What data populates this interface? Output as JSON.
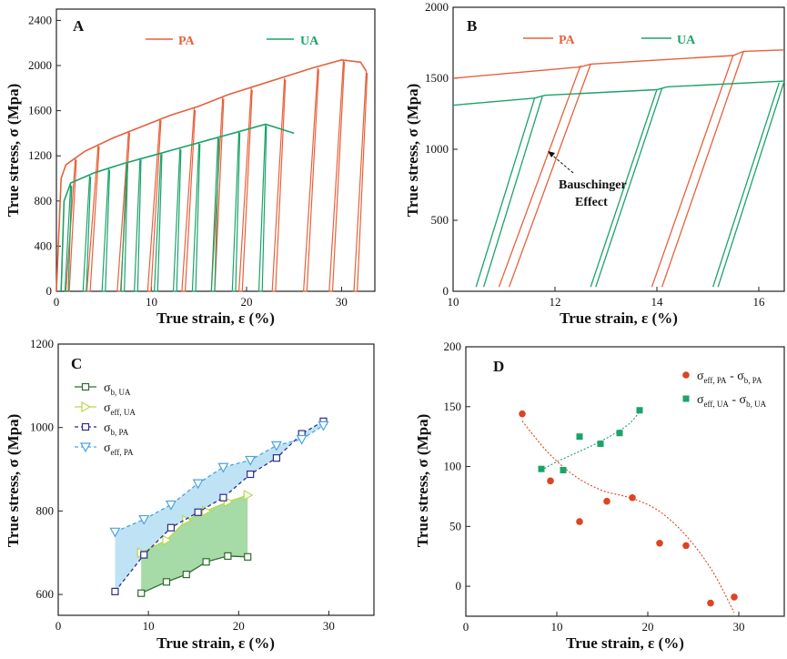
{
  "colors": {
    "pa": "#e8603c",
    "ua": "#1aa36a",
    "blue": "#3b3bb8",
    "yellow": "#b8d84a",
    "fill_blue": "#bfe3f5",
    "fill_green": "#a6dba8",
    "ua_dark": "#2e6b2e",
    "blue_dash": "#2c2c8c",
    "tri_blue": "#4aa3e0",
    "red_dot": "#dd4422",
    "green_sq": "#1aa36a"
  },
  "chart_data": [
    {
      "id": "A",
      "type": "line",
      "panel_label": "A",
      "xlabel": "True strain, ε (%)",
      "ylabel": "True stress, σ (Mpa)",
      "xlim": [
        0,
        33.5
      ],
      "ylim": [
        0,
        2500
      ],
      "xticks": [
        0,
        10,
        20,
        30
      ],
      "yticks": [
        0,
        400,
        800,
        1200,
        1600,
        2000,
        2400
      ],
      "legend": [
        {
          "name": "PA",
          "color_key": "pa"
        },
        {
          "name": "UA",
          "color_key": "ua"
        }
      ],
      "series": [
        {
          "name": "PA",
          "envelope": [
            [
              0,
              0
            ],
            [
              0.5,
              1000
            ],
            [
              1,
              1120
            ],
            [
              3,
              1240
            ],
            [
              6,
              1360
            ],
            [
              9,
              1460
            ],
            [
              12,
              1560
            ],
            [
              15,
              1640
            ],
            [
              18,
              1740
            ],
            [
              21,
              1820
            ],
            [
              24,
              1900
            ],
            [
              27,
              1980
            ],
            [
              30,
              2050
            ],
            [
              32,
              2030
            ],
            [
              32.6,
              1950
            ]
          ],
          "cycles": [
            [
              2.0,
              1180,
              1.0
            ],
            [
              4.4,
              1300,
              3.2
            ],
            [
              7.6,
              1420,
              6.4
            ],
            [
              10.9,
              1530,
              9.6
            ],
            [
              14.5,
              1620,
              13.2
            ],
            [
              17.5,
              1720,
              16.3
            ],
            [
              20.5,
              1800,
              19.2
            ],
            [
              24.0,
              1890,
              22.7
            ],
            [
              27.5,
              1980,
              26.0
            ],
            [
              30.2,
              2050,
              28.7
            ],
            [
              32.6,
              1950,
              31.3
            ]
          ]
        },
        {
          "name": "UA",
          "envelope": [
            [
              0.5,
              0
            ],
            [
              0.8,
              800
            ],
            [
              1.5,
              960
            ],
            [
              4,
              1050
            ],
            [
              7,
              1130
            ],
            [
              10,
              1200
            ],
            [
              13,
              1270
            ],
            [
              16,
              1340
            ],
            [
              19,
              1410
            ],
            [
              22,
              1480
            ],
            [
              25,
              1400
            ]
          ],
          "cycles": [
            [
              1.5,
              950,
              0.9
            ],
            [
              3.5,
              1030,
              2.8
            ],
            [
              5.5,
              1090,
              4.8
            ],
            [
              7.4,
              1140,
              6.8
            ],
            [
              8.8,
              1180,
              8.2
            ],
            [
              11.0,
              1230,
              10.3
            ],
            [
              13.0,
              1270,
              12.3
            ],
            [
              15.0,
              1320,
              14.3
            ],
            [
              17.0,
              1370,
              16.3
            ],
            [
              19.2,
              1420,
              18.5
            ],
            [
              22.0,
              1480,
              21.3
            ]
          ]
        }
      ]
    },
    {
      "id": "B",
      "type": "line",
      "panel_label": "B",
      "xlabel": "True strain, ε (%)",
      "ylabel": "True stress, σ (Mpa)",
      "xlim": [
        10,
        16.5
      ],
      "ylim": [
        0,
        2000
      ],
      "xticks": [
        10,
        12,
        14,
        16
      ],
      "yticks": [
        0,
        500,
        1000,
        1500,
        2000
      ],
      "legend": [
        {
          "name": "PA",
          "color_key": "pa"
        },
        {
          "name": "UA",
          "color_key": "ua"
        }
      ],
      "annotation": {
        "lines": [
          "Bauschinger",
          "Effect"
        ],
        "point": [
          12.05,
          1000
        ],
        "text_pos": [
          12.8,
          730
        ]
      },
      "series": [
        {
          "name": "PA",
          "flow": [
            [
              10,
              1500
            ],
            [
              12.5,
              1580
            ],
            [
              12.7,
              1600
            ],
            [
              15.5,
              1660
            ],
            [
              15.7,
              1690
            ],
            [
              16.5,
              1700
            ]
          ],
          "unload": [
            [
              12.5,
              1590,
              10.9,
              30
            ],
            [
              12.7,
              1600,
              11.1,
              30
            ],
            [
              15.5,
              1665,
              13.9,
              30
            ],
            [
              15.7,
              1690,
              14.1,
              30
            ]
          ]
        },
        {
          "name": "UA",
          "flow": [
            [
              10,
              1310
            ],
            [
              11.6,
              1360
            ],
            [
              11.8,
              1380
            ],
            [
              14.0,
              1420
            ],
            [
              14.2,
              1440
            ],
            [
              16.5,
              1480
            ]
          ],
          "unload": [
            [
              11.6,
              1360,
              10.45,
              30
            ],
            [
              11.75,
              1370,
              10.6,
              30
            ],
            [
              14.0,
              1420,
              12.7,
              30
            ],
            [
              14.1,
              1430,
              12.8,
              30
            ],
            [
              16.4,
              1470,
              15.1,
              30
            ],
            [
              16.5,
              1480,
              15.2,
              30
            ]
          ]
        }
      ]
    },
    {
      "id": "C",
      "type": "line",
      "panel_label": "C",
      "xlabel": "True strain, ε (%)",
      "ylabel": "True stress, σ (Mpa)",
      "xlim": [
        0,
        35
      ],
      "ylim": [
        550,
        1200
      ],
      "xticks": [
        0,
        10,
        20,
        30
      ],
      "yticks": [
        600,
        800,
        1000,
        1200
      ],
      "series": [
        {
          "name": "σb, UA",
          "legend_main": "σ",
          "legend_sub": "b, UA",
          "marker": "square",
          "color_key": "ua_dark",
          "dash": false,
          "x": [
            9.2,
            12.0,
            14.2,
            16.4,
            18.8,
            21.0
          ],
          "y": [
            603,
            630,
            648,
            678,
            692,
            690
          ]
        },
        {
          "name": "σeff, UA",
          "legend_main": "σ",
          "legend_sub": "eff, UA",
          "marker": "triangle-right",
          "color_key": "yellow",
          "dash": false,
          "x": [
            9.2,
            12.0,
            14.2,
            16.4,
            18.8,
            21.0
          ],
          "y": [
            700,
            730,
            778,
            800,
            822,
            838
          ]
        },
        {
          "name": "σb, PA",
          "legend_main": "σ",
          "legend_sub": "b, PA",
          "marker": "square",
          "color_key": "blue_dash",
          "dash": true,
          "x": [
            6.3,
            9.5,
            12.5,
            15.5,
            18.3,
            21.3,
            24.2,
            27.0,
            29.4
          ],
          "y": [
            607,
            695,
            760,
            797,
            832,
            888,
            927,
            985,
            1015
          ]
        },
        {
          "name": "σeff, PA",
          "legend_main": "σ",
          "legend_sub": "eff, PA",
          "marker": "triangle-down",
          "color_key": "tri_blue",
          "dash": true,
          "x": [
            6.3,
            9.5,
            12.5,
            15.5,
            18.3,
            21.3,
            24.2,
            27.0,
            29.4
          ],
          "y": [
            750,
            780,
            815,
            866,
            905,
            922,
            957,
            972,
            1005
          ]
        }
      ]
    },
    {
      "id": "D",
      "type": "scatter",
      "panel_label": "D",
      "xlabel": "True strain, ε (%)",
      "ylabel": "True stress, σ (Mpa)",
      "xlim": [
        0,
        35
      ],
      "ylim": [
        -25,
        200
      ],
      "xticks": [
        0,
        10,
        20,
        30
      ],
      "yticks": [
        0,
        50,
        100,
        150,
        200
      ],
      "series": [
        {
          "name": "σeff, PA - σb, PA",
          "legend_parts": [
            "σ",
            "eff, PA",
            " - σ",
            "b, PA"
          ],
          "marker": "circle",
          "color_key": "red_dot",
          "x": [
            6.2,
            9.3,
            12.5,
            15.5,
            18.3,
            21.3,
            24.2,
            26.9,
            29.5
          ],
          "y": [
            144,
            88,
            54,
            71,
            74,
            36,
            34,
            -14,
            -9
          ],
          "fit": [
            [
              6.2,
              138
            ],
            [
              9,
              112
            ],
            [
              12,
              92
            ],
            [
              15,
              80
            ],
            [
              18,
              74
            ],
            [
              21,
              64
            ],
            [
              24,
              44
            ],
            [
              27,
              14
            ],
            [
              29.5,
              -22
            ]
          ]
        },
        {
          "name": "σeff, UA - σb, UA",
          "legend_parts": [
            "σ",
            "eff, UA",
            " - σ",
            "b, UA"
          ],
          "marker": "square",
          "color_key": "green_sq",
          "x": [
            8.3,
            10.7,
            12.5,
            14.8,
            16.9,
            19.1
          ],
          "y": [
            98,
            97,
            125,
            119,
            128,
            147
          ],
          "fit": [
            [
              8.3,
              97
            ],
            [
              10,
              104
            ],
            [
              12,
              111
            ],
            [
              14,
              118
            ],
            [
              16,
              126
            ],
            [
              18,
              136
            ],
            [
              19.1,
              146
            ]
          ]
        }
      ]
    }
  ]
}
